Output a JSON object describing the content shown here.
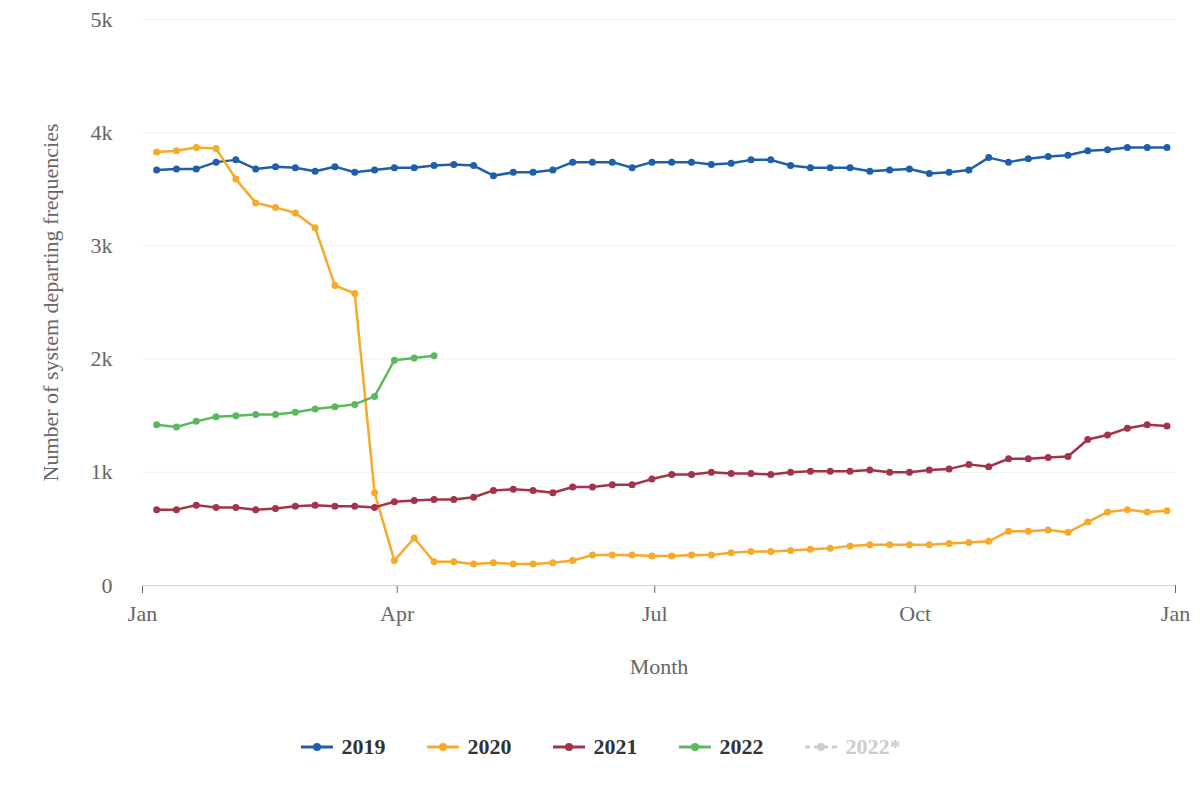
{
  "chart_data": {
    "type": "line",
    "x_label": "Month",
    "y_label": "Number of system departing frequencies",
    "x": [
      5,
      12,
      19,
      26,
      33,
      40,
      47,
      54,
      61,
      68,
      75,
      82,
      89,
      96,
      103,
      110,
      117,
      124,
      131,
      138,
      145,
      152,
      159,
      166,
      173,
      180,
      187,
      194,
      201,
      208,
      215,
      222,
      229,
      236,
      243,
      250,
      257,
      264,
      271,
      278,
      285,
      292,
      299,
      306,
      313,
      320,
      327,
      334,
      341,
      348,
      355,
      362
    ],
    "xlim": [
      0,
      365
    ],
    "xticks": [
      {
        "value": 0,
        "label": "Jan"
      },
      {
        "value": 90,
        "label": "Apr"
      },
      {
        "value": 181,
        "label": "Jul"
      },
      {
        "value": 273,
        "label": "Oct"
      },
      {
        "value": 365,
        "label": "Jan"
      }
    ],
    "ylim": [
      0,
      5000
    ],
    "yticks": [
      0,
      {
        "value": 1000,
        "label": "1k"
      },
      {
        "value": 2000,
        "label": "2k"
      },
      {
        "value": 3000,
        "label": "3k"
      },
      {
        "value": 4000,
        "label": "4k"
      },
      {
        "value": 5000,
        "label": "5k"
      }
    ],
    "grid": true,
    "legend": "bottom",
    "series": [
      {
        "name": "2019",
        "color": "#1f5ea8",
        "marker": "circle",
        "line_style": "solid",
        "values": [
          3670,
          3680,
          3680,
          3740,
          3760,
          3680,
          3700,
          3690,
          3660,
          3700,
          3650,
          3670,
          3690,
          3690,
          3710,
          3720,
          3710,
          3620,
          3650,
          3650,
          3670,
          3740,
          3740,
          3740,
          3690,
          3740,
          3740,
          3740,
          3720,
          3730,
          3760,
          3760,
          3710,
          3690,
          3690,
          3690,
          3660,
          3670,
          3680,
          3640,
          3650,
          3670,
          3780,
          3740,
          3770,
          3790,
          3800,
          3840,
          3850,
          3870,
          3870,
          3870
        ]
      },
      {
        "name": "2020",
        "color": "#f7a92a",
        "marker": "circle",
        "line_style": "solid",
        "values": [
          3830,
          3840,
          3870,
          3860,
          3590,
          3380,
          3340,
          3290,
          3160,
          2650,
          2580,
          820,
          220,
          420,
          210,
          210,
          190,
          200,
          190,
          190,
          200,
          220,
          270,
          270,
          270,
          260,
          260,
          270,
          270,
          290,
          300,
          300,
          310,
          320,
          330,
          350,
          360,
          360,
          360,
          360,
          370,
          380,
          390,
          480,
          480,
          490,
          470,
          560,
          650,
          670,
          650,
          660
        ]
      },
      {
        "name": "2021",
        "color": "#a3334b",
        "marker": "circle",
        "line_style": "solid",
        "values": [
          670,
          670,
          710,
          690,
          690,
          670,
          680,
          700,
          710,
          700,
          700,
          690,
          740,
          750,
          760,
          760,
          780,
          840,
          850,
          840,
          820,
          870,
          870,
          890,
          890,
          940,
          980,
          980,
          1000,
          990,
          990,
          980,
          1000,
          1010,
          1010,
          1010,
          1020,
          1000,
          1000,
          1020,
          1030,
          1070,
          1050,
          1120,
          1120,
          1130,
          1140,
          1290,
          1330,
          1390,
          1420,
          1410
        ]
      },
      {
        "name": "2022",
        "color": "#5cb85c",
        "marker": "circle",
        "line_style": "solid",
        "values": [
          1420,
          1400,
          1450,
          1490,
          1500,
          1510,
          1510,
          1530,
          1560,
          1580,
          1600,
          1670,
          1990,
          2010,
          2030,
          null,
          null,
          null,
          null,
          null,
          null,
          null,
          null,
          null,
          null,
          null,
          null,
          null,
          null,
          null,
          null,
          null,
          null,
          null,
          null,
          null,
          null,
          null,
          null,
          null,
          null,
          null,
          null,
          null,
          null,
          null,
          null,
          null,
          null,
          null,
          null,
          null
        ]
      },
      {
        "name": "2022*",
        "color": "#cccccc",
        "marker": "circle",
        "line_style": "dashed",
        "values": [
          null,
          null,
          null,
          null,
          null,
          null,
          null,
          null,
          null,
          null,
          null,
          null,
          null,
          null,
          null,
          null,
          null,
          null,
          null,
          null,
          null,
          null,
          null,
          null,
          null,
          null,
          null,
          null,
          null,
          null,
          null,
          null,
          null,
          null,
          null,
          null,
          null,
          null,
          null,
          null,
          null,
          null,
          null,
          null,
          null,
          null,
          null,
          null,
          null,
          null,
          null,
          null
        ]
      }
    ]
  }
}
